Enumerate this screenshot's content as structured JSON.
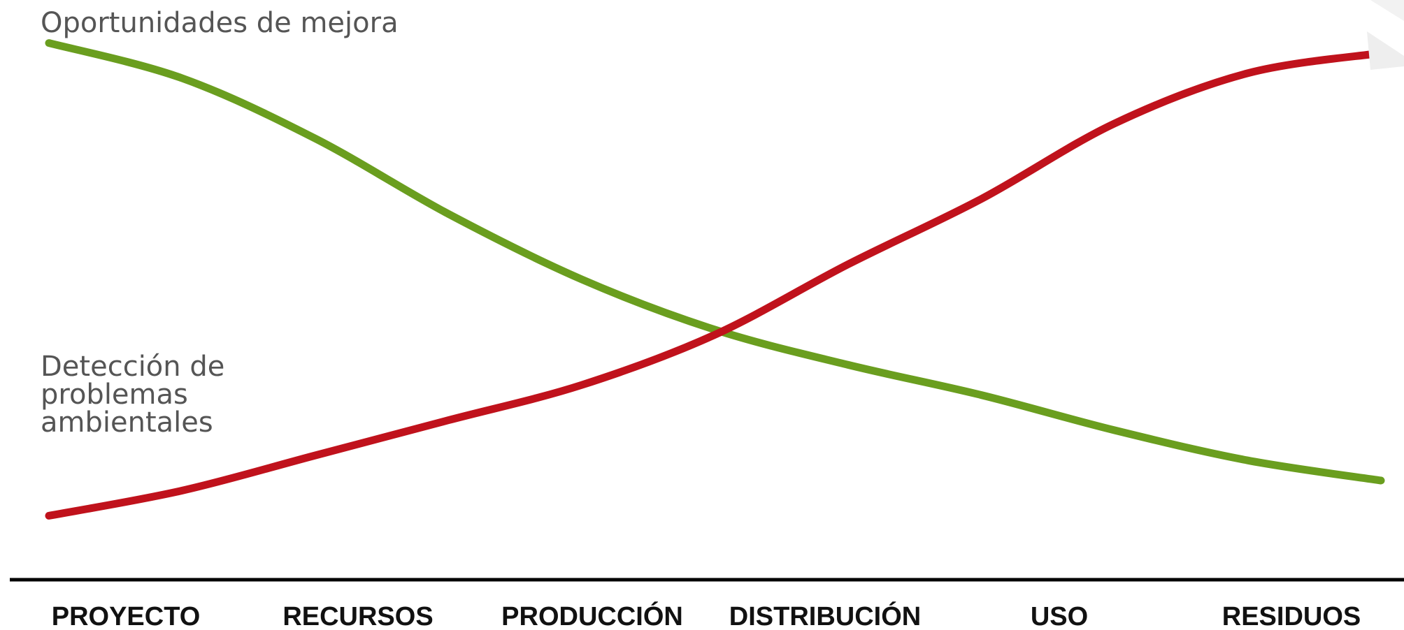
{
  "chart_data": {
    "type": "line",
    "categories": [
      "PROYECTO",
      "RECURSOS",
      "PRODUCCIÓN",
      "DISTRIBUCIÓN",
      "USO",
      "RESIDUOS"
    ],
    "ylim": [
      0,
      100
    ],
    "grid": false,
    "series": [
      {
        "name": "Oportunidades de mejora",
        "color": "#6a9e1f",
        "x": [
          0,
          0.5,
          1,
          1.5,
          2,
          2.5,
          3,
          3.5,
          4,
          4.5,
          5
        ],
        "values": [
          97,
          90,
          78,
          63,
          50,
          40,
          33,
          27,
          20,
          14,
          10
        ]
      },
      {
        "name": "Detección de problemas ambientales",
        "name_lines": [
          "Detección de",
          "problemas",
          "ambientales"
        ],
        "color": "#c0121c",
        "x": [
          0,
          0.5,
          1,
          1.5,
          2,
          2.5,
          3,
          3.5,
          4,
          4.5,
          5
        ],
        "values": [
          3,
          8,
          15,
          22,
          29,
          39,
          53,
          66,
          81,
          91,
          95
        ]
      }
    ]
  }
}
